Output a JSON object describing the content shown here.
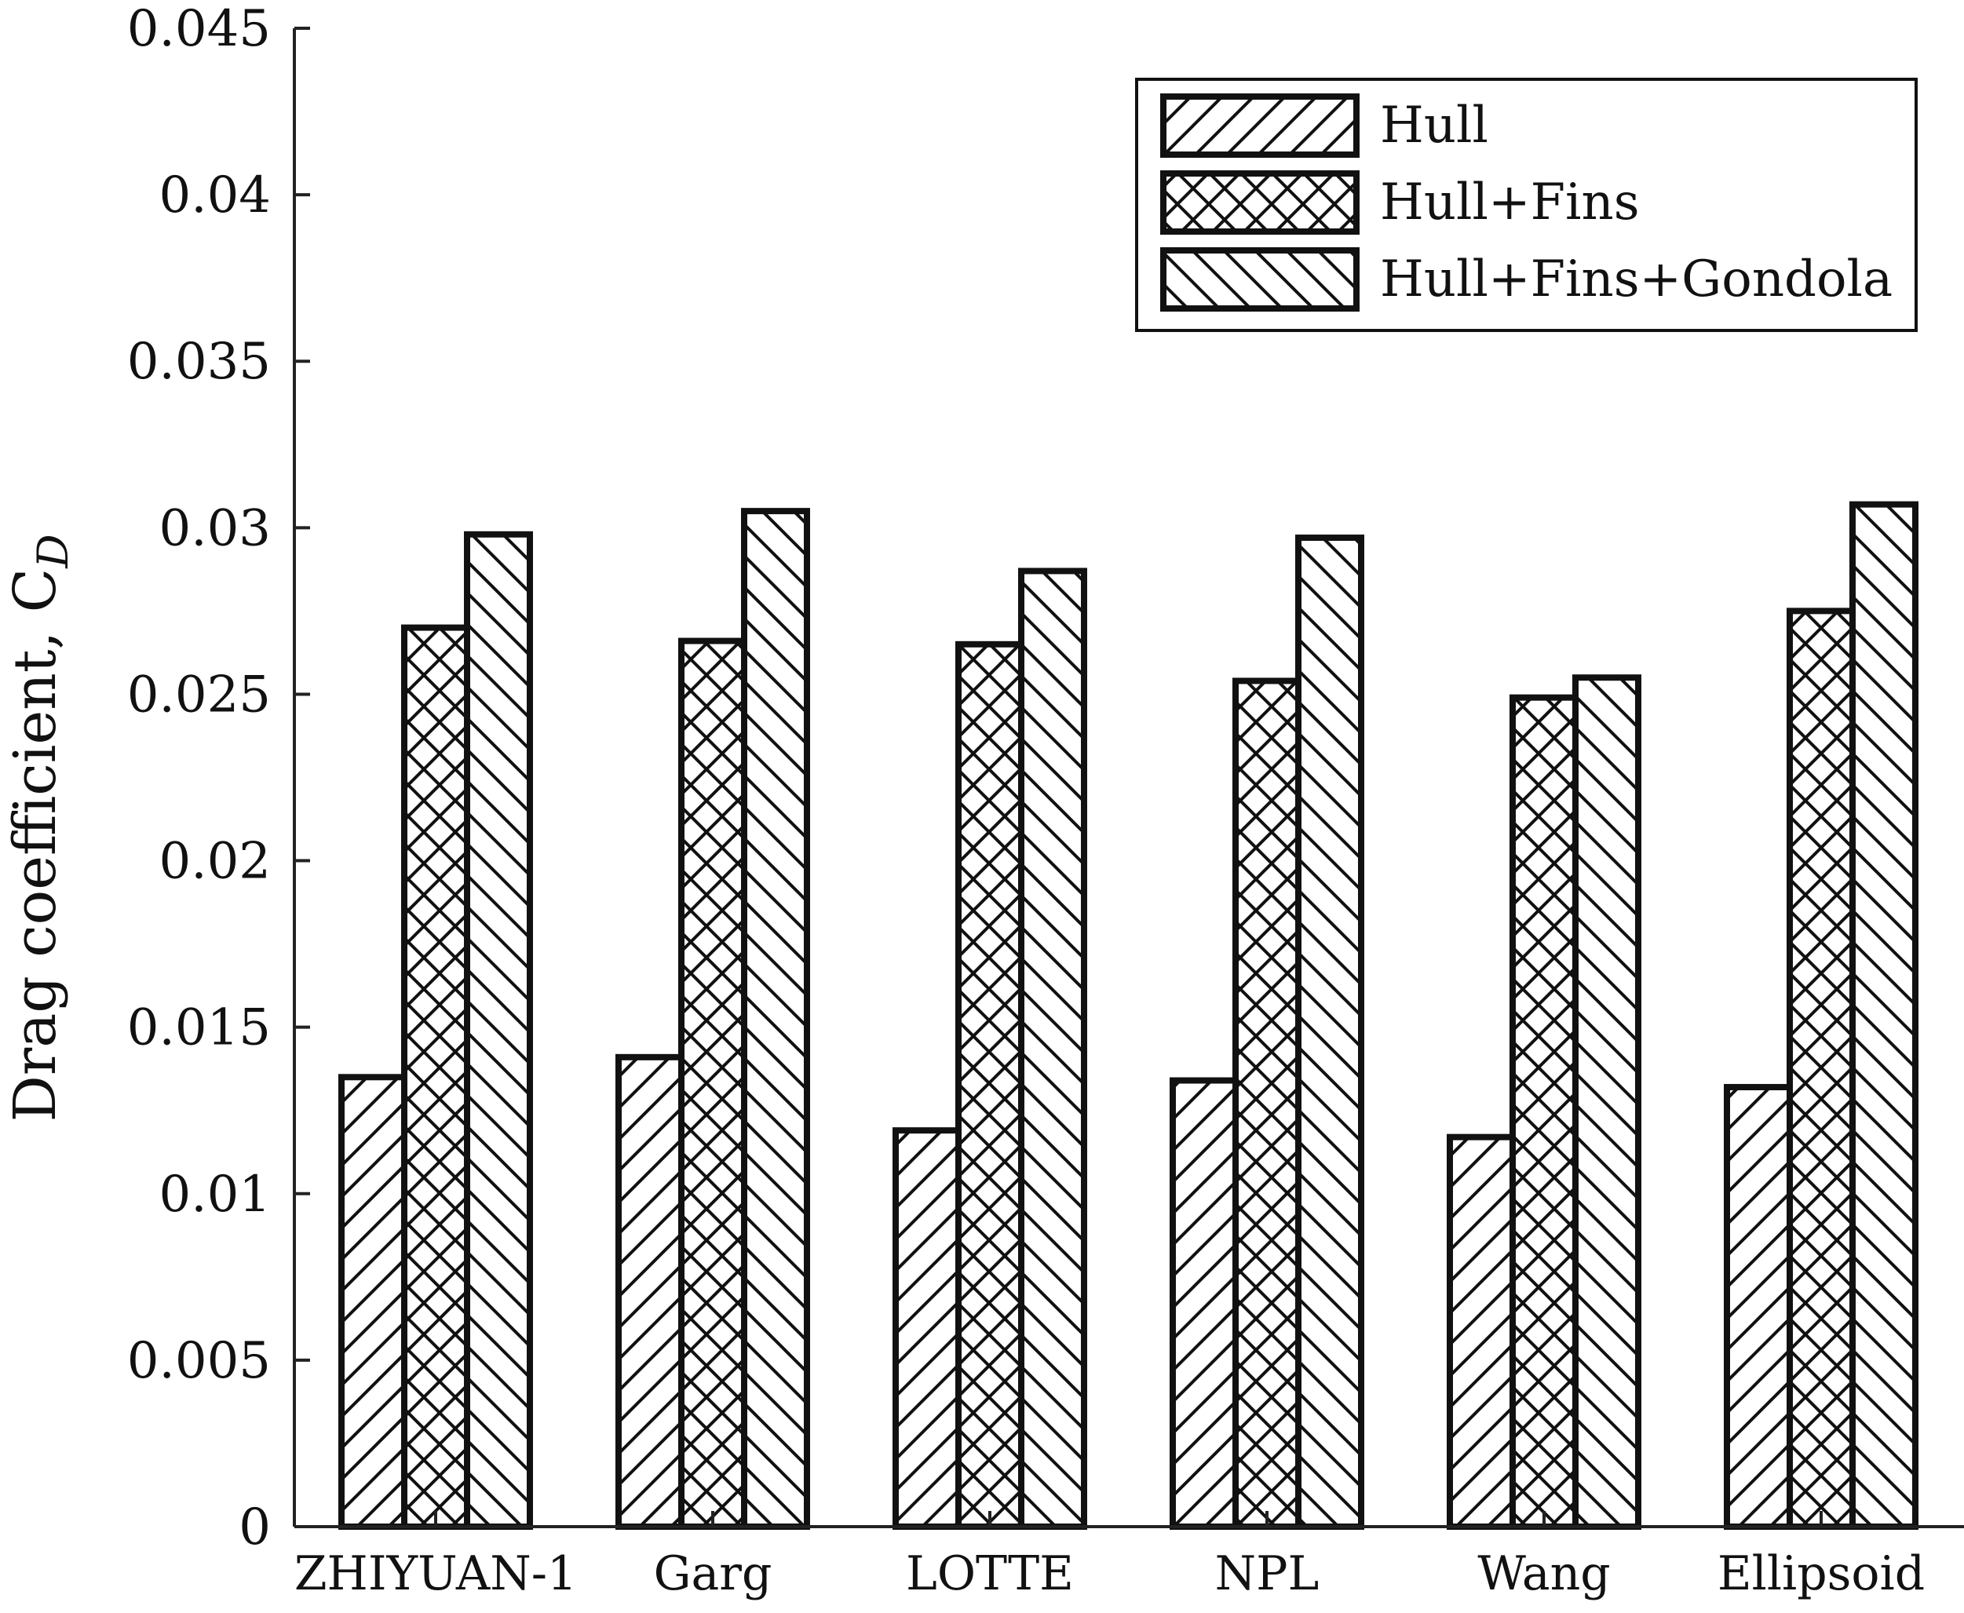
{
  "chart_data": {
    "type": "bar",
    "title": "",
    "xlabel": "",
    "ylabel": "Drag coefficient, C",
    "ylabel_subscript": "D",
    "categories": [
      "ZHIYUAN-1",
      "Garg",
      "LOTTE",
      "NPL",
      "Wang",
      "Ellipsoid"
    ],
    "series": [
      {
        "name": "Hull",
        "pattern": "hatch-forward",
        "values": [
          0.0135,
          0.0141,
          0.0119,
          0.0134,
          0.0117,
          0.0132
        ]
      },
      {
        "name": "Hull+Fins",
        "pattern": "crosshatch",
        "values": [
          0.027,
          0.0266,
          0.0265,
          0.0254,
          0.0249,
          0.0275
        ]
      },
      {
        "name": "Hull+Fins+Gondola",
        "pattern": "hatch-backward",
        "values": [
          0.0298,
          0.0305,
          0.0287,
          0.0297,
          0.0255,
          0.0307
        ]
      }
    ],
    "ylim": [
      0,
      0.045
    ],
    "yticks": [
      "0",
      "0.005",
      "0.01",
      "0.015",
      "0.02",
      "0.025",
      "0.03",
      "0.035",
      "0.04",
      "0.045"
    ],
    "ytick_values": [
      0,
      0.005,
      0.01,
      0.015,
      0.02,
      0.025,
      0.03,
      0.035,
      0.04,
      0.045
    ],
    "grid": false,
    "legend_position": "top-right",
    "colors": {
      "bar_fill": "#ffffff",
      "edge": "#111111"
    }
  }
}
